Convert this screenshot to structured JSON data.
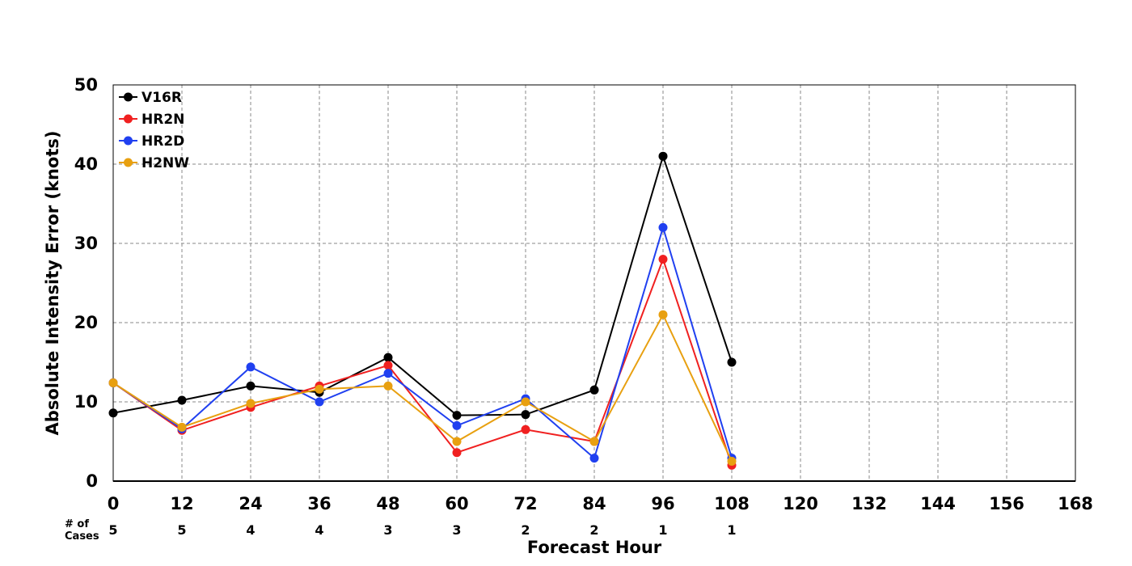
{
  "chart_data": {
    "type": "line",
    "title": "",
    "xlabel": "Forecast Hour",
    "ylabel": "Absolute Intensity Error (knots)",
    "xlim": [
      0,
      168
    ],
    "ylim": [
      0,
      50
    ],
    "x_ticks": [
      0,
      12,
      24,
      36,
      48,
      60,
      72,
      84,
      96,
      108,
      120,
      132,
      144,
      156,
      168
    ],
    "y_ticks": [
      0,
      10,
      20,
      30,
      40,
      50
    ],
    "grid": true,
    "legend_position": "top-left",
    "x": [
      0,
      12,
      24,
      36,
      48,
      60,
      72,
      84,
      96,
      108
    ],
    "series": [
      {
        "name": "V16R",
        "color": "#000000",
        "values": [
          8.6,
          10.2,
          12.0,
          11.2,
          15.6,
          8.3,
          8.4,
          11.5,
          41.0,
          15.0
        ]
      },
      {
        "name": "HR2N",
        "color": "#f02020",
        "values": [
          12.4,
          6.4,
          9.3,
          12.0,
          14.6,
          3.6,
          6.5,
          5.0,
          28.0,
          2.0
        ]
      },
      {
        "name": "HR2D",
        "color": "#2040f0",
        "values": [
          12.4,
          6.6,
          14.4,
          10.0,
          13.6,
          7.0,
          10.4,
          2.9,
          32.0,
          2.9
        ]
      },
      {
        "name": "H2NW",
        "color": "#e8a010",
        "values": [
          12.4,
          6.8,
          9.8,
          11.6,
          12.0,
          5.0,
          10.0,
          5.0,
          21.0,
          2.5
        ]
      }
    ],
    "cases_label": "# of\nCases",
    "cases": [
      "5",
      "5",
      "4",
      "4",
      "3",
      "3",
      "2",
      "2",
      "1",
      "1"
    ]
  }
}
